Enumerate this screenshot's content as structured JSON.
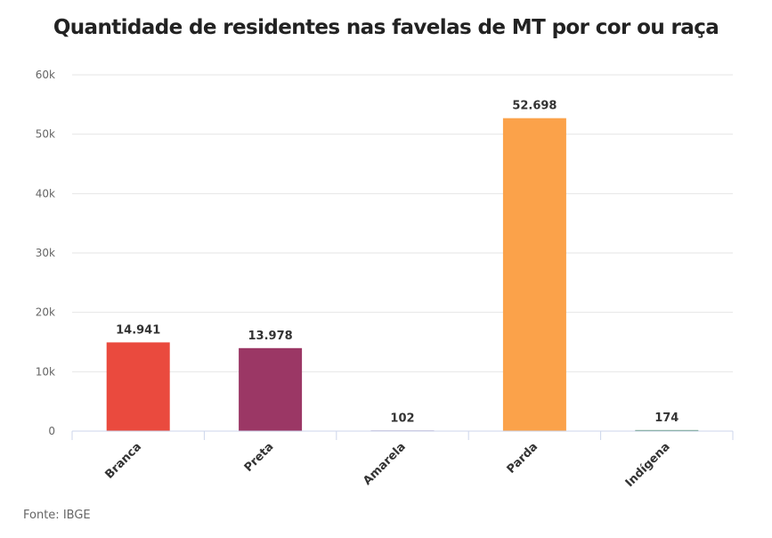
{
  "chart_data": {
    "type": "bar",
    "title": "Quantidade de residentes nas favelas de MT por cor ou raça",
    "xlabel": "",
    "ylabel": "",
    "categories": [
      "Branca",
      "Preta",
      "Amarela",
      "Parda",
      "Indígena"
    ],
    "values": [
      14941,
      13978,
      102,
      52698,
      174
    ],
    "data_labels": [
      "14.941",
      "13.978",
      "102",
      "52.698",
      "174"
    ],
    "colors": [
      "#ea4a3e",
      "#9b3765",
      "#6b4c9a",
      "#fba24a",
      "#4c8b6b"
    ],
    "ylim": [
      0,
      60000
    ],
    "yticks": [
      0,
      10000,
      20000,
      30000,
      40000,
      50000,
      60000
    ],
    "ytick_labels": [
      "0",
      "10k",
      "20k",
      "30k",
      "40k",
      "50k",
      "60k"
    ],
    "grid": true,
    "legend": "none",
    "source": "Fonte: IBGE"
  }
}
